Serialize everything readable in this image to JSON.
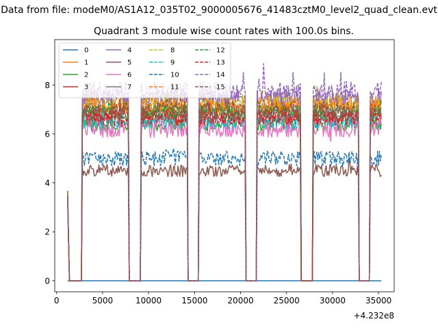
{
  "chart_data": {
    "type": "line",
    "suptitle": "Data from file: modeM0/AS1A12_035T02_9000005676_41483cztM0_level2_quad_clean.evt",
    "title": "Quadrant 3 module wise count rates with 100.0s bins.",
    "xlabel": "",
    "ylabel": "",
    "x_offset_label": "+4.232e8",
    "xlim": [
      -200,
      36700
    ],
    "ylim": [
      -0.45,
      9.85
    ],
    "xticks": [
      0,
      5000,
      10000,
      15000,
      20000,
      25000,
      30000,
      35000
    ],
    "xtick_labels": [
      "0",
      "5000",
      "10000",
      "15000",
      "20000",
      "25000",
      "30000",
      "35000"
    ],
    "yticks": [
      0,
      2,
      4,
      6,
      8
    ],
    "ytick_labels": [
      "0",
      "2",
      "4",
      "6",
      "8"
    ],
    "legend": {
      "placement": "upper-left",
      "columns": 4
    },
    "time_range": [
      1200,
      35300
    ],
    "bin_size_s": 100,
    "on_intervals": [
      [
        2800,
        7800
      ],
      [
        9200,
        14200
      ],
      [
        15500,
        20500
      ],
      [
        21800,
        26500
      ],
      [
        27900,
        32800
      ],
      [
        34100,
        35300
      ]
    ],
    "initial_spike": {
      "x_start": 1200,
      "x_end": 1300,
      "value_start": 3.7,
      "value_end": 1.6
    },
    "series": [
      {
        "name": "0",
        "color": "#1f77b4",
        "linestyle": "solid",
        "baseline": 0.0,
        "noise": 0.0
      },
      {
        "name": "1",
        "color": "#ff7f0e",
        "linestyle": "solid",
        "baseline": 7.1,
        "noise": 0.35
      },
      {
        "name": "2",
        "color": "#2ca02c",
        "linestyle": "solid",
        "baseline": 6.4,
        "noise": 0.3
      },
      {
        "name": "3",
        "color": "#d62728",
        "linestyle": "solid",
        "baseline": 6.6,
        "noise": 0.3
      },
      {
        "name": "4",
        "color": "#9467bd",
        "linestyle": "solid",
        "baseline": 7.5,
        "noise": 0.35
      },
      {
        "name": "5",
        "color": "#8c564b",
        "linestyle": "solid",
        "baseline": 4.5,
        "noise": 0.25
      },
      {
        "name": "6",
        "color": "#e377c2",
        "linestyle": "solid",
        "baseline": 6.2,
        "noise": 0.35
      },
      {
        "name": "7",
        "color": "#7f7f7f",
        "linestyle": "solid",
        "baseline": 6.9,
        "noise": 0.3
      },
      {
        "name": "8",
        "color": "#bcbd22",
        "linestyle": "dashed",
        "baseline": 7.3,
        "noise": 0.35
      },
      {
        "name": "9",
        "color": "#17becf",
        "linestyle": "dashed",
        "baseline": 6.5,
        "noise": 0.3
      },
      {
        "name": "10",
        "color": "#1f77b4",
        "linestyle": "dashed",
        "baseline": 5.0,
        "noise": 0.3
      },
      {
        "name": "11",
        "color": "#ff7f0e",
        "linestyle": "dashed",
        "baseline": 7.2,
        "noise": 0.35
      },
      {
        "name": "12",
        "color": "#2ca02c",
        "linestyle": "dashed",
        "baseline": 6.9,
        "noise": 0.3
      },
      {
        "name": "13",
        "color": "#d62728",
        "linestyle": "dashed",
        "baseline": 6.7,
        "noise": 0.3
      },
      {
        "name": "14",
        "color": "#9467bd",
        "linestyle": "dashed",
        "baseline": 7.7,
        "noise": 0.45
      },
      {
        "name": "15",
        "color": "#8c564b",
        "linestyle": "dashed",
        "baseline": 7.0,
        "noise": 0.35
      }
    ]
  }
}
